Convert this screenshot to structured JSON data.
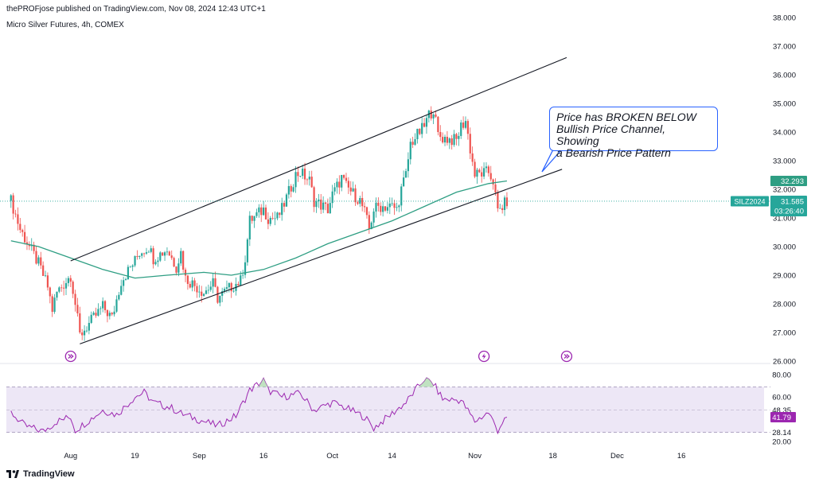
{
  "header": {
    "published": "thePROFjose published on TradingView.com, Nov 08, 2024 12:43 UTC+1",
    "instrument": "Micro Silver Futures, 4h, COMEX"
  },
  "footer": {
    "brand": "TradingView"
  },
  "annotation": {
    "lines": [
      "Price has BROKEN BELOW",
      "Bullish Price Channel, Showing",
      "a Bearish Price Pattern"
    ]
  },
  "colors": {
    "up": "#26a69a",
    "down": "#ef5350",
    "ma": "#2e9e83",
    "rsi": "#9c27b0",
    "rsi_band": "#ede7f6",
    "channel": "#131722",
    "callout": "#2962ff",
    "event": "#9c27b0"
  },
  "chart_data": [
    {
      "type": "candlestick",
      "title": "Micro Silver Futures, 4h, COMEX",
      "y_ticks": [
        "38.000",
        "37.000",
        "36.000",
        "35.000",
        "34.000",
        "33.000",
        "32.000",
        "31.000",
        "30.000",
        "29.000",
        "28.000",
        "27.000",
        "26.000"
      ],
      "x_ticks": [
        "Aug",
        "19",
        "Sep",
        "16",
        "Oct",
        "14",
        "Nov",
        "18",
        "Dec",
        "16"
      ],
      "ylim": [
        26,
        38
      ],
      "key_prices": [
        {
          "name": "SILZ2024",
          "value": 31.585,
          "countdown": "03:26:40"
        },
        {
          "value": 32.293
        }
      ],
      "price_path": [
        [
          "Jul 23",
          31.6
        ],
        [
          "Jul 25",
          30.6
        ],
        [
          "Jul 29",
          29.4
        ],
        [
          "Jul 31",
          28.6
        ],
        [
          "Aug 1",
          27.8
        ],
        [
          "Aug 2",
          28.4
        ],
        [
          "Aug 5",
          29.0
        ],
        [
          "Aug 6",
          28.0
        ],
        [
          "Aug 7",
          26.9
        ],
        [
          "Aug 9",
          27.3
        ],
        [
          "Aug 12",
          27.9
        ],
        [
          "Aug 14",
          27.5
        ],
        [
          "Aug 16",
          28.8
        ],
        [
          "Aug 19",
          29.5
        ],
        [
          "Aug 20",
          29.8
        ],
        [
          "Aug 22",
          30.0
        ],
        [
          "Aug 23",
          29.6
        ],
        [
          "Aug 26",
          29.9
        ],
        [
          "Aug 28",
          29.3
        ],
        [
          "Aug 29",
          29.8
        ],
        [
          "Aug 30",
          28.9
        ],
        [
          "Sep 3",
          28.4
        ],
        [
          "Sep 5",
          28.7
        ],
        [
          "Sep 6",
          28.2
        ],
        [
          "Sep 9",
          28.6
        ],
        [
          "Sep 11",
          28.8
        ],
        [
          "Sep 12",
          29.6
        ],
        [
          "Sep 13",
          30.9
        ],
        [
          "Sep 16",
          31.3
        ],
        [
          "Sep 17",
          31.0
        ],
        [
          "Sep 19",
          31.0
        ],
        [
          "Sep 20",
          31.3
        ],
        [
          "Sep 23",
          32.5
        ],
        [
          "Sep 24",
          32.6
        ],
        [
          "Sep 26",
          32.3
        ],
        [
          "Sep 27",
          31.6
        ],
        [
          "Sep 30",
          31.3
        ],
        [
          "Oct 1",
          31.8
        ],
        [
          "Oct 3",
          32.4
        ],
        [
          "Oct 4",
          32.1
        ],
        [
          "Oct 7",
          31.6
        ],
        [
          "Oct 8",
          31.2
        ],
        [
          "Oct 9",
          30.6
        ],
        [
          "Oct 10",
          31.3
        ],
        [
          "Oct 11",
          31.4
        ],
        [
          "Oct 14",
          31.4
        ],
        [
          "Oct 15",
          31.3
        ],
        [
          "Oct 16",
          32.0
        ],
        [
          "Oct 17",
          32.5
        ],
        [
          "Oct 18",
          33.6
        ],
        [
          "Oct 21",
          34.2
        ],
        [
          "Oct 22",
          34.6
        ],
        [
          "Oct 23",
          34.8
        ],
        [
          "Oct 24",
          33.9
        ],
        [
          "Oct 25",
          33.8
        ],
        [
          "Oct 28",
          33.7
        ],
        [
          "Oct 29",
          34.2
        ],
        [
          "Oct 30",
          34.4
        ],
        [
          "Oct 31",
          33.4
        ],
        [
          "Nov 1",
          32.5
        ],
        [
          "Nov 4",
          32.6
        ],
        [
          "Nov 5",
          32.3
        ],
        [
          "Nov 6",
          31.2
        ],
        [
          "Nov 7",
          31.4
        ],
        [
          "Nov 8",
          31.585
        ]
      ],
      "moving_average_path": [
        [
          "Jul 23",
          30.2
        ],
        [
          "Jul 29",
          30.0
        ],
        [
          "Aug 5",
          29.6
        ],
        [
          "Aug 12",
          29.2
        ],
        [
          "Aug 19",
          28.9
        ],
        [
          "Aug 26",
          29.0
        ],
        [
          "Sep 3",
          29.1
        ],
        [
          "Sep 9",
          29.0
        ],
        [
          "Sep 16",
          29.2
        ],
        [
          "Sep 23",
          29.6
        ],
        [
          "Sep 30",
          30.1
        ],
        [
          "Oct 7",
          30.5
        ],
        [
          "Oct 14",
          30.9
        ],
        [
          "Oct 21",
          31.4
        ],
        [
          "Oct 28",
          31.9
        ],
        [
          "Nov 4",
          32.2
        ],
        [
          "Nov 8",
          32.293
        ]
      ],
      "channel_lines": {
        "upper": [
          [
            "Aug 5",
            29.5
          ],
          [
            "Nov 21",
            36.6
          ]
        ],
        "lower": [
          [
            "Aug 7",
            26.6
          ],
          [
            "Nov 20",
            32.7
          ]
        ]
      }
    },
    {
      "type": "line",
      "name": "RSI",
      "y_ticks": [
        "80.00",
        "60.00",
        "48.35",
        "28.14",
        "20.00"
      ],
      "ylim": [
        20,
        80
      ],
      "band": [
        28.14,
        69.0
      ],
      "midline": 48.35,
      "last_value": 41.79,
      "path": [
        [
          "Jul 23",
          46
        ],
        [
          "Jul 26",
          34
        ],
        [
          "Jul 30",
          29
        ],
        [
          "Aug 2",
          38
        ],
        [
          "Aug 5",
          42
        ],
        [
          "Aug 6",
          30
        ],
        [
          "Aug 8",
          36
        ],
        [
          "Aug 12",
          48
        ],
        [
          "Aug 15",
          44
        ],
        [
          "Aug 19",
          60
        ],
        [
          "Aug 21",
          64
        ],
        [
          "Aug 23",
          55
        ],
        [
          "Aug 27",
          50
        ],
        [
          "Aug 29",
          45
        ],
        [
          "Sep 3",
          38
        ],
        [
          "Sep 6",
          34
        ],
        [
          "Sep 10",
          43
        ],
        [
          "Sep 13",
          66
        ],
        [
          "Sep 16",
          75
        ],
        [
          "Sep 17",
          66
        ],
        [
          "Sep 20",
          60
        ],
        [
          "Sep 24",
          63
        ],
        [
          "Sep 27",
          48
        ],
        [
          "Oct 1",
          55
        ],
        [
          "Oct 4",
          50
        ],
        [
          "Oct 8",
          42
        ],
        [
          "Oct 10",
          32
        ],
        [
          "Oct 14",
          45
        ],
        [
          "Oct 17",
          55
        ],
        [
          "Oct 21",
          76
        ],
        [
          "Oct 23",
          72
        ],
        [
          "Oct 25",
          58
        ],
        [
          "Oct 29",
          57
        ],
        [
          "Nov 1",
          38
        ],
        [
          "Nov 4",
          46
        ],
        [
          "Nov 6",
          30
        ],
        [
          "Nov 7",
          37
        ],
        [
          "Nov 8",
          41.79
        ]
      ]
    }
  ]
}
